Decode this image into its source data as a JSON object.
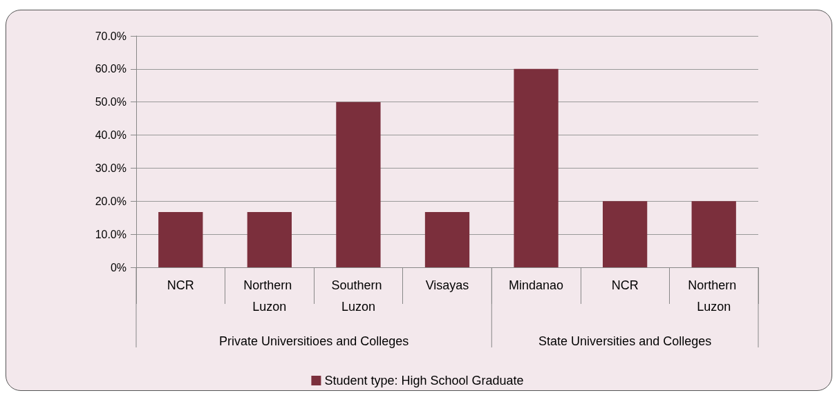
{
  "chart_data": {
    "type": "bar",
    "categories": [
      "NCR",
      "Northern Luzon",
      "Southern Luzon",
      "Visayas",
      "Mindanao",
      "NCR",
      "Northern Luzon"
    ],
    "series": [
      {
        "name": "Student type: High School Graduate",
        "color": "#7b2f3c",
        "values": [
          16.7,
          16.7,
          50,
          16.7,
          60,
          20,
          20
        ]
      }
    ],
    "ylim": [
      0,
      70
    ],
    "yticks": [
      {
        "value": 0,
        "label": "0%"
      },
      {
        "value": 10,
        "label": "10.0%"
      },
      {
        "value": 20,
        "label": "20.0%"
      },
      {
        "value": 30,
        "label": "30.0%"
      },
      {
        "value": 40,
        "label": "40.0%"
      },
      {
        "value": 50,
        "label": "50.0%"
      },
      {
        "value": 60,
        "label": "60.0%"
      },
      {
        "value": 70,
        "label": "70.0%"
      }
    ],
    "annotations": [
      "Private Universitioes and Colleges",
      "State Universities and Colleges"
    ],
    "grid": "y",
    "legend": "bottom"
  }
}
